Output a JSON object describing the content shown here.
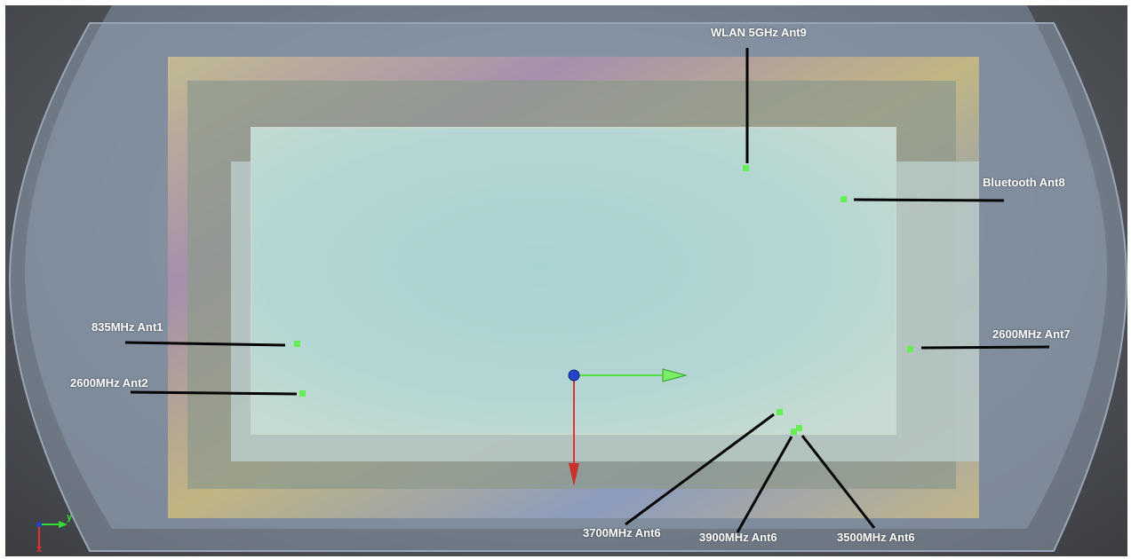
{
  "viewport": {
    "background": "#5c6066",
    "enclosure_color": "#8e9bab",
    "board_color": "#b6c8c5",
    "display_color": "#a7cfce"
  },
  "antennas": [
    {
      "id": "wlan5-ant9",
      "label": "WLAN 5GHz Ant9"
    },
    {
      "id": "bt-ant8",
      "label": "Bluetooth Ant8"
    },
    {
      "id": "835-ant1",
      "label": "835MHz Ant1"
    },
    {
      "id": "2600-ant2",
      "label": "2600MHz Ant2"
    },
    {
      "id": "2600-ant7",
      "label": "2600MHz Ant7"
    },
    {
      "id": "3700-ant6",
      "label": "3700MHz Ant6"
    },
    {
      "id": "3900-ant6",
      "label": "3900MHz Ant6"
    },
    {
      "id": "3500-ant6",
      "label": "3500MHz Ant6"
    }
  ],
  "marker_color": "#66ee55",
  "triad": {
    "y_label": "y",
    "x_label": "x",
    "y_color": "#33dd33",
    "x_color": "#dd3333",
    "origin_color": "#2244cc"
  }
}
